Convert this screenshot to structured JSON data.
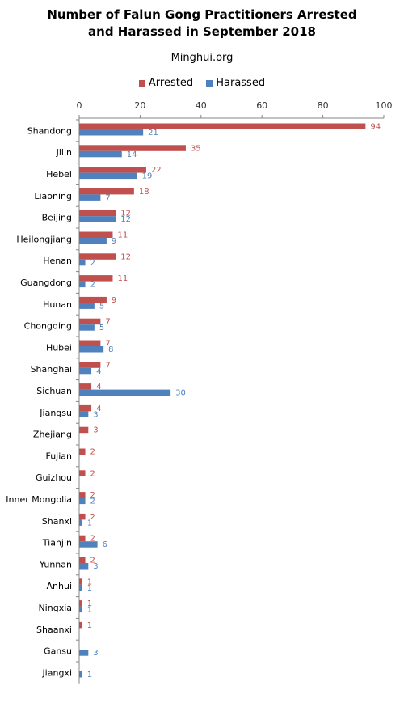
{
  "chart_data": {
    "type": "bar",
    "orientation": "horizontal",
    "title_line1": "Number of Falun Gong Practitioners Arrested",
    "title_line2": "and Harassed in September 2018",
    "subtitle": "Minghui.org",
    "categories": [
      "Shandong",
      "Jilin",
      "Hebei",
      "Liaoning",
      "Beijing",
      "Heilongjiang",
      "Henan",
      "Guangdong",
      "Hunan",
      "Chongqing",
      "Hubei",
      "Shanghai",
      "Sichuan",
      "Jiangsu",
      "Zhejiang",
      "Fujian",
      "Guizhou",
      "Inner Mongolia",
      "Shanxi",
      "Tianjin",
      "Yunnan",
      "Anhui",
      "Ningxia",
      "Shaanxi",
      "Gansu",
      "Jiangxi"
    ],
    "series": [
      {
        "name": "Arrested",
        "color": "#c0504d",
        "values": [
          94,
          35,
          22,
          18,
          12,
          11,
          12,
          11,
          9,
          7,
          7,
          7,
          4,
          4,
          3,
          2,
          2,
          2,
          2,
          2,
          2,
          1,
          1,
          1,
          null,
          null
        ]
      },
      {
        "name": "Harassed",
        "color": "#4f81bd",
        "values": [
          21,
          14,
          19,
          7,
          12,
          9,
          2,
          2,
          5,
          5,
          8,
          4,
          30,
          3,
          null,
          null,
          null,
          2,
          1,
          6,
          3,
          1,
          1,
          null,
          3,
          1
        ]
      }
    ],
    "xlim": [
      0,
      100
    ],
    "xticks": [
      0,
      20,
      40,
      60,
      80,
      100
    ],
    "legend_position": "top",
    "grid": false
  }
}
